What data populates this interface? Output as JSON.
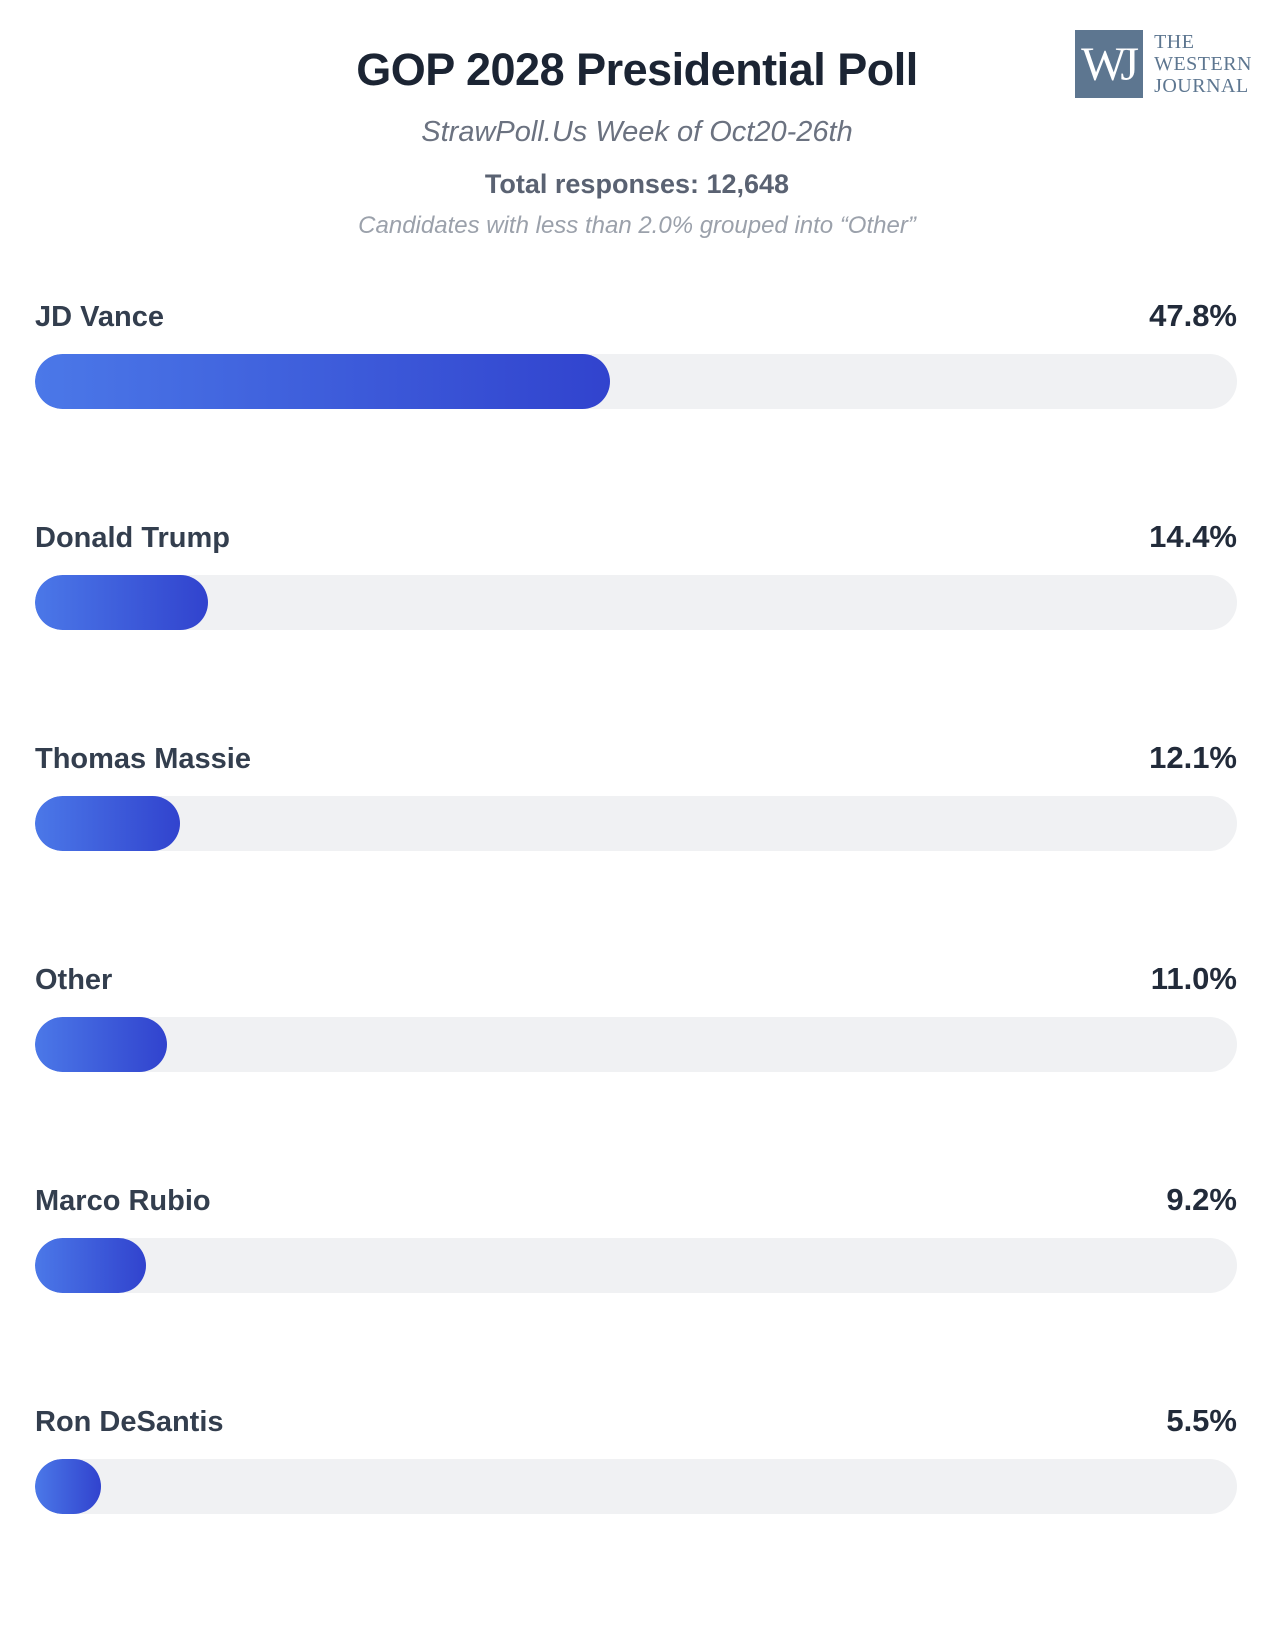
{
  "header": {
    "title": "GOP 2028 Presidential Poll",
    "subtitle": "StrawPoll.Us Week of Oct20-26th",
    "total_responses": "Total responses: 12,648",
    "note": "Candidates with less than 2.0% grouped into “Other”"
  },
  "logo": {
    "monogram": "WJ",
    "name_lines": [
      "THE",
      "WESTERN",
      "JOURNAL"
    ]
  },
  "colors": {
    "title_text": "#1b2433",
    "subtitle_text": "#6b7280",
    "total_text": "#5a6272",
    "note_text": "#9ba1ab",
    "label_text": "#333e4e",
    "value_text": "#222b3a",
    "bar_gradient_start": "#4b78e8",
    "bar_gradient_end": "#3143ce",
    "track": "#f0f1f3",
    "logo": "#5d7690"
  },
  "chart_data": {
    "type": "bar",
    "orientation": "horizontal",
    "title": "GOP 2028 Presidential Poll",
    "subtitle": "StrawPoll.Us Week of Oct20-26th",
    "total_responses": 12648,
    "note": "Candidates with less than 2.0% grouped into “Other”",
    "categories": [
      "JD Vance",
      "Donald Trump",
      "Thomas Massie",
      "Other",
      "Marco Rubio",
      "Ron DeSantis"
    ],
    "values": [
      47.8,
      14.4,
      12.1,
      11.0,
      9.2,
      5.5
    ],
    "value_labels": [
      "47.8%",
      "14.4%",
      "12.1%",
      "11.0%",
      "9.2%",
      "5.5%"
    ],
    "unit": "percent",
    "xlim": [
      0,
      100
    ],
    "grid": false,
    "legend": false
  }
}
